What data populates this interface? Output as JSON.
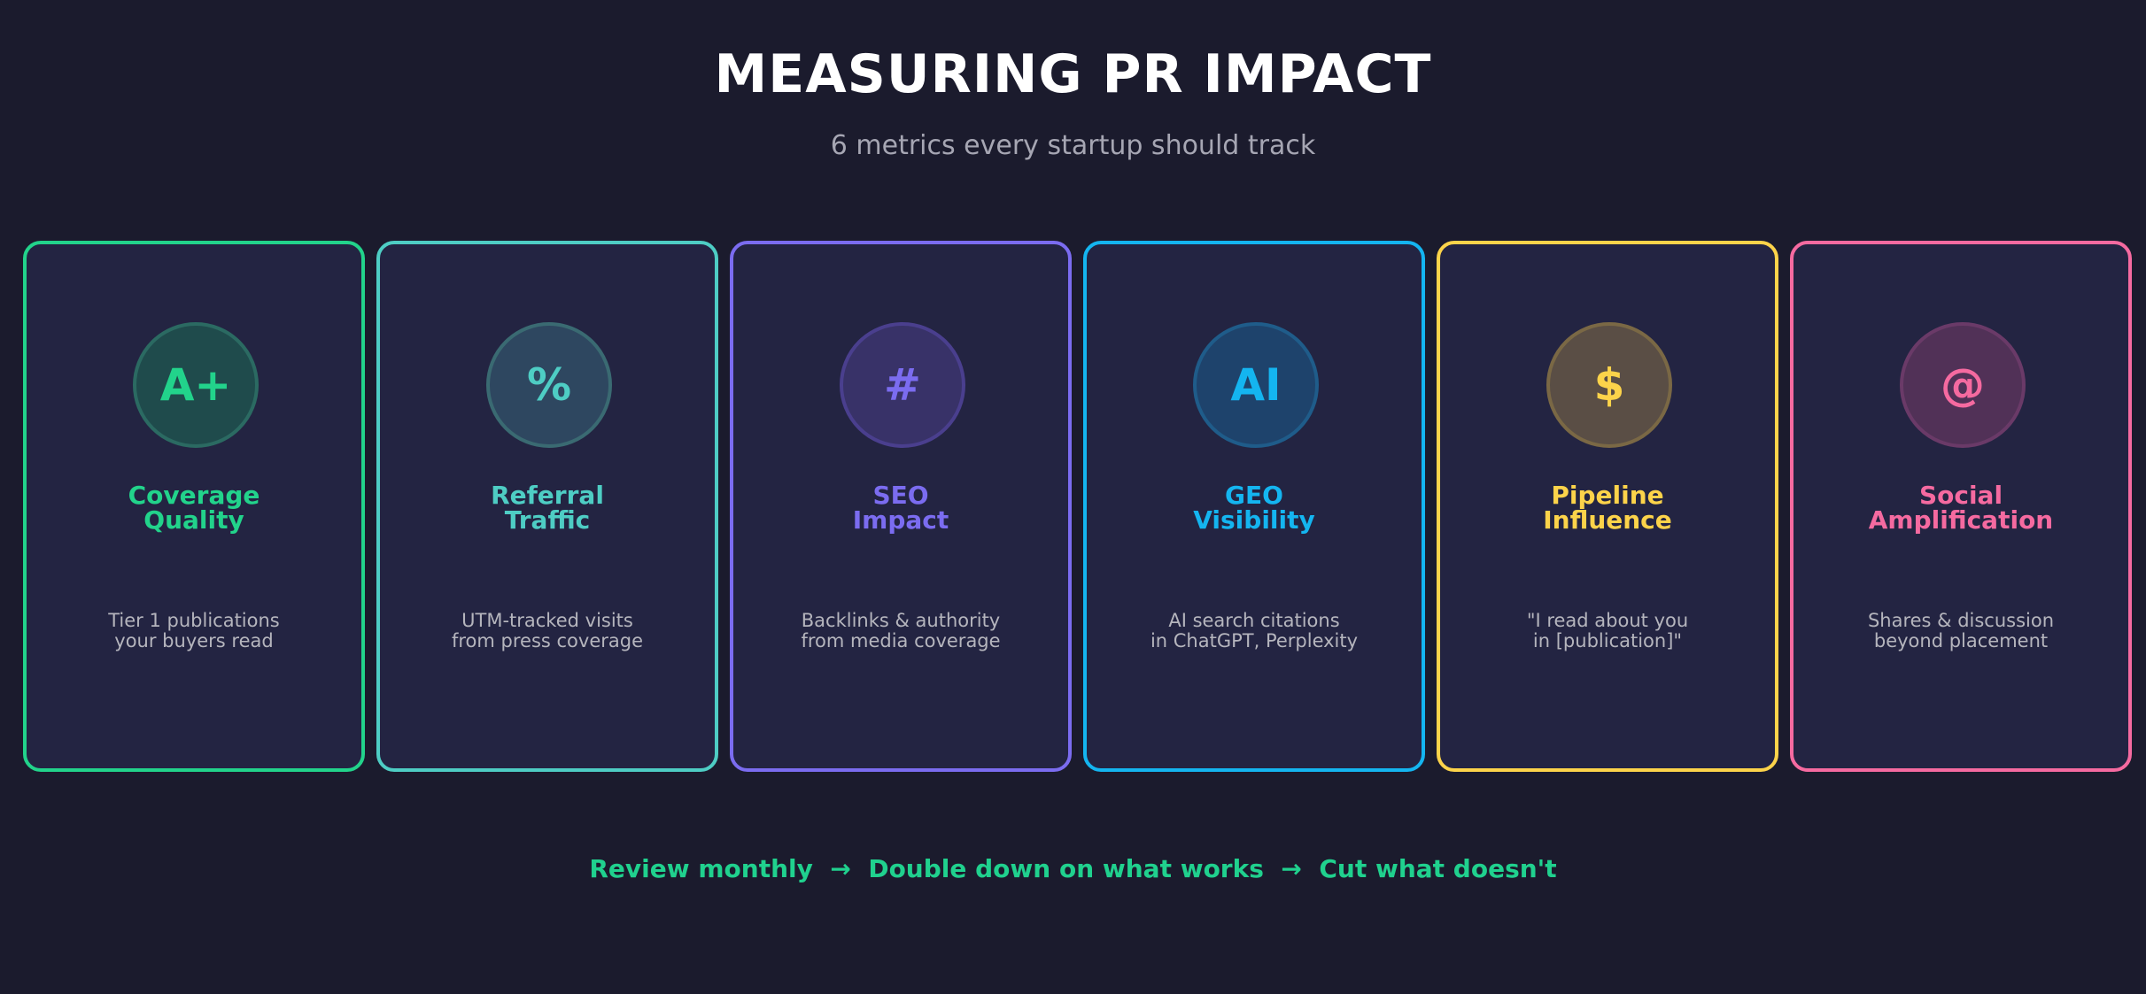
{
  "header": {
    "title": "MEASURING PR IMPACT",
    "subtitle": "6 metrics every startup should track"
  },
  "cards": [
    {
      "icon_name": "grade-icon",
      "icon_glyph": "A+",
      "title_lines": [
        "Coverage",
        "Quality"
      ],
      "desc_lines": [
        "Tier 1 publications",
        "your buyers read"
      ],
      "accent": "#22d38b",
      "ring": "#2b6a62",
      "fill": "#1f4b4c"
    },
    {
      "icon_name": "percent-icon",
      "icon_glyph": "%",
      "title_lines": [
        "Referral",
        "Traffic"
      ],
      "desc_lines": [
        "UTM-tracked visits",
        "from press coverage"
      ],
      "accent": "#4ecdc4",
      "ring": "#3a6a72",
      "fill": "#2e4760"
    },
    {
      "icon_name": "hash-icon",
      "icon_glyph": "#",
      "title_lines": [
        "SEO",
        "Impact"
      ],
      "desc_lines": [
        "Backlinks & authority",
        "from media coverage"
      ],
      "accent": "#7b6cf0",
      "ring": "#4a3f8e",
      "fill": "#383268"
    },
    {
      "icon_name": "ai-icon",
      "icon_glyph": "AI",
      "title_lines": [
        "GEO",
        "Visibility"
      ],
      "desc_lines": [
        "AI search citations",
        "in ChatGPT, Perplexity"
      ],
      "accent": "#14b5f0",
      "ring": "#1f5c8a",
      "fill": "#1e436c"
    },
    {
      "icon_name": "dollar-icon",
      "icon_glyph": "$",
      "title_lines": [
        "Pipeline",
        "Influence"
      ],
      "desc_lines": [
        "\"I read about you",
        "in [publication]\""
      ],
      "accent": "#fcd34a",
      "ring": "#7a6845",
      "fill": "#5a4e45"
    },
    {
      "icon_name": "at-icon",
      "icon_glyph": "@",
      "title_lines": [
        "Social",
        "Amplification"
      ],
      "desc_lines": [
        "Shares & discussion",
        "beyond placement"
      ],
      "accent": "#f56aa0",
      "ring": "#6a3a68",
      "fill": "#513157"
    }
  ],
  "footer": {
    "text": "Review monthly  →  Double down on what works  →  Cut what doesn't"
  }
}
